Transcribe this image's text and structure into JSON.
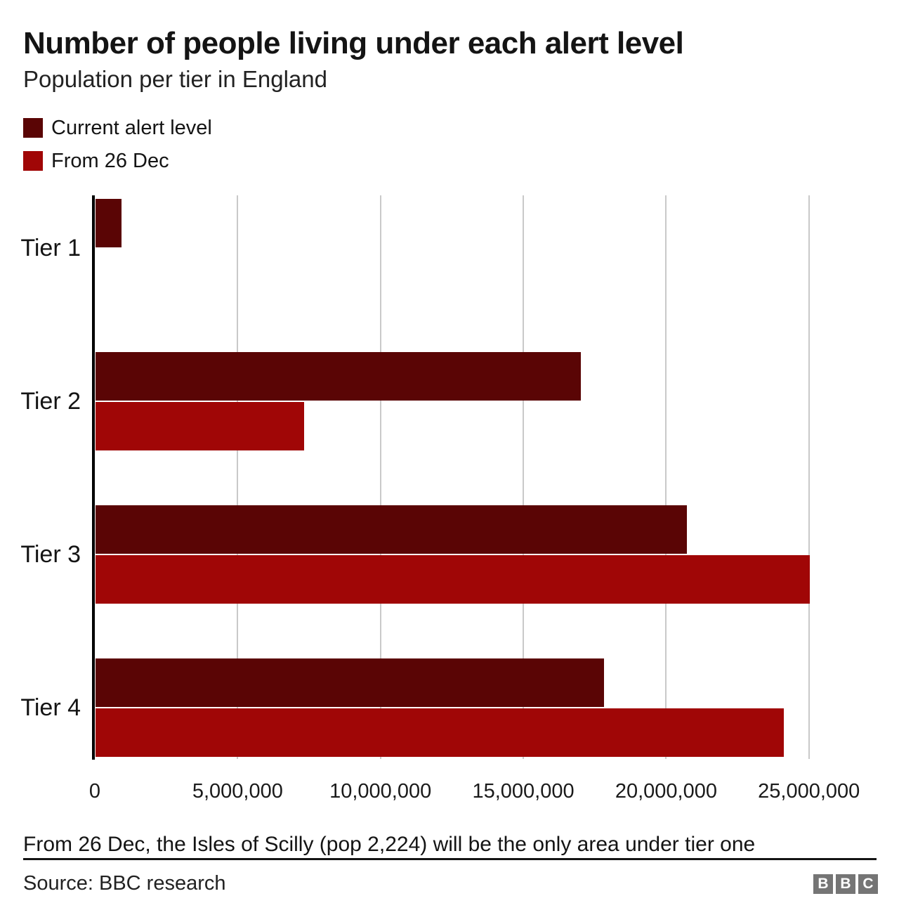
{
  "header": {
    "title": "Number of people living under each alert level",
    "subtitle": "Population per tier in England"
  },
  "legend": [
    {
      "label": "Current alert level",
      "color": "#5a0505"
    },
    {
      "label": "From 26 Dec",
      "color": "#a00606"
    }
  ],
  "chart_data": {
    "type": "bar",
    "orientation": "horizontal",
    "title": "Number of people living under each alert level",
    "subtitle": "Population per tier in England",
    "categories": [
      "Tier 1",
      "Tier 2",
      "Tier 3",
      "Tier 4"
    ],
    "series": [
      {
        "name": "Current alert level",
        "color": "#5a0505",
        "values": [
          900000,
          17000000,
          20700000,
          17800000
        ]
      },
      {
        "name": "From 26 Dec",
        "color": "#a00606",
        "values": [
          2224,
          7300000,
          25000000,
          24100000
        ]
      }
    ],
    "xlabel": "",
    "ylabel": "",
    "xlim": [
      0,
      27400000
    ],
    "xticks": {
      "values": [
        0,
        5000000,
        10000000,
        15000000,
        20000000,
        25000000
      ],
      "labels": [
        "0",
        "5,000,000",
        "10,000,000",
        "15,000,000",
        "20,000,000",
        "25,000,000"
      ]
    },
    "grid": "vertical-only",
    "gridline_color": "#c9c9c9",
    "axis_color": "#000000",
    "legend_position": "top-left"
  },
  "footer": {
    "note": "From 26 Dec, the Isles of Scilly (pop 2,224) will be the only area under tier one",
    "source": "Source: BBC research",
    "logo_letters": [
      "B",
      "B",
      "C"
    ],
    "logo_color": "#757575"
  }
}
